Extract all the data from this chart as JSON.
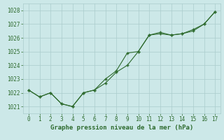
{
  "line1_x": [
    0,
    1,
    2,
    3,
    4,
    5,
    6,
    7,
    8,
    9,
    10,
    11,
    12,
    13,
    14,
    15,
    16,
    17
  ],
  "line1_y": [
    1022.2,
    1021.7,
    1022.0,
    1021.2,
    1021.0,
    1022.0,
    1022.2,
    1022.7,
    1023.5,
    1024.0,
    1025.0,
    1026.2,
    1026.3,
    1026.2,
    1026.3,
    1026.5,
    1027.0,
    1027.9
  ],
  "line2_x": [
    0,
    1,
    2,
    3,
    4,
    5,
    6,
    7,
    8,
    9,
    10,
    11,
    12,
    13,
    14,
    15,
    16,
    17
  ],
  "line2_y": [
    1022.2,
    1021.7,
    1022.0,
    1021.2,
    1021.0,
    1022.0,
    1022.2,
    1023.0,
    1023.6,
    1024.9,
    1025.0,
    1026.2,
    1026.4,
    1026.2,
    1026.3,
    1026.6,
    1027.0,
    1027.9
  ],
  "line_color": "#2d6a2d",
  "marker": "+",
  "xlabel": "Graphe pression niveau de la mer (hPa)",
  "ylim": [
    1020.5,
    1028.5
  ],
  "xlim": [
    -0.5,
    17.5
  ],
  "yticks": [
    1021,
    1022,
    1023,
    1024,
    1025,
    1026,
    1027,
    1028
  ],
  "xticks": [
    0,
    1,
    2,
    3,
    4,
    5,
    6,
    7,
    8,
    9,
    10,
    11,
    12,
    13,
    14,
    15,
    16,
    17
  ],
  "bg_color": "#cce8e8",
  "grid_color": "#aacccc",
  "label_color": "#2d6a2d",
  "tick_fontsize": 5.5,
  "xlabel_fontsize": 6.5
}
